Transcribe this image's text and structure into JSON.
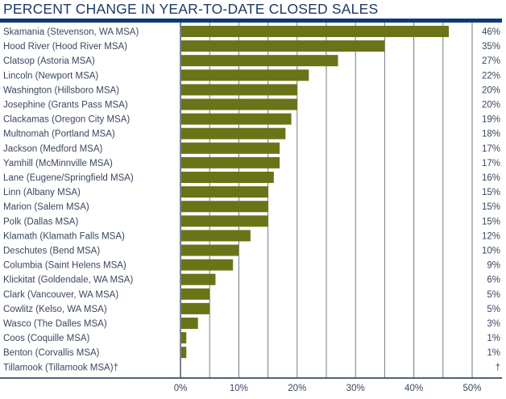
{
  "chart_data": {
    "type": "bar",
    "orientation": "horizontal",
    "title": "PERCENT CHANGE IN YEAR-TO-DATE CLOSED SALES",
    "xlabel": "",
    "ylabel": "",
    "xlim": [
      0,
      50
    ],
    "grid": true,
    "legend": "none",
    "colors": {
      "bar": "#6b7318",
      "title_rule": "#0b3b72",
      "grid": "#6e7b86",
      "text": "#3a4660"
    },
    "x_ticks": [
      "0%",
      "10%",
      "20%",
      "30%",
      "40%",
      "50%"
    ],
    "x_tick_values": [
      0,
      10,
      20,
      30,
      40,
      50
    ],
    "gridline_values": [
      0,
      5,
      10,
      15,
      20,
      25,
      30,
      35,
      40,
      45,
      50
    ],
    "categories": [
      "Skamania (Stevenson, WA MSA)",
      "Hood River (Hood River MSA)",
      "Clatsop (Astoria MSA)",
      "Lincoln (Newport MSA)",
      "Washington (Hillsboro MSA)",
      "Josephine (Grants Pass MSA)",
      "Clackamas (Oregon City MSA)",
      "Multnomah (Portland MSA)",
      "Jackson (Medford MSA)",
      "Yamhill (McMinnville MSA)",
      "Lane (Eugene/Springfield MSA)",
      "Linn (Albany MSA)",
      "Marion (Salem MSA)",
      "Polk (Dallas MSA)",
      "Klamath (Klamath Falls MSA)",
      "Deschutes (Bend MSA)",
      "Columbia (Saint Helens MSA)",
      "Klickitat (Goldendale, WA MSA)",
      "Clark (Vancouver, WA MSA)",
      "Cowlitz (Kelso, WA MSA)",
      "Wasco (The Dalles MSA)",
      "Coos (Coquille MSA)",
      "Benton (Corvallis MSA)",
      "Tillamook (Tillamook MSA)†"
    ],
    "values": [
      46,
      35,
      27,
      22,
      20,
      20,
      19,
      18,
      17,
      17,
      16,
      15,
      15,
      15,
      12,
      10,
      9,
      6,
      5,
      5,
      3,
      1,
      1,
      null
    ],
    "value_labels": [
      "46%",
      "35%",
      "27%",
      "22%",
      "20%",
      "20%",
      "19%",
      "18%",
      "17%",
      "17%",
      "16%",
      "15%",
      "15%",
      "15%",
      "12%",
      "10%",
      "9%",
      "6%",
      "5%",
      "5%",
      "3%",
      "1%",
      "1%",
      "†"
    ]
  }
}
